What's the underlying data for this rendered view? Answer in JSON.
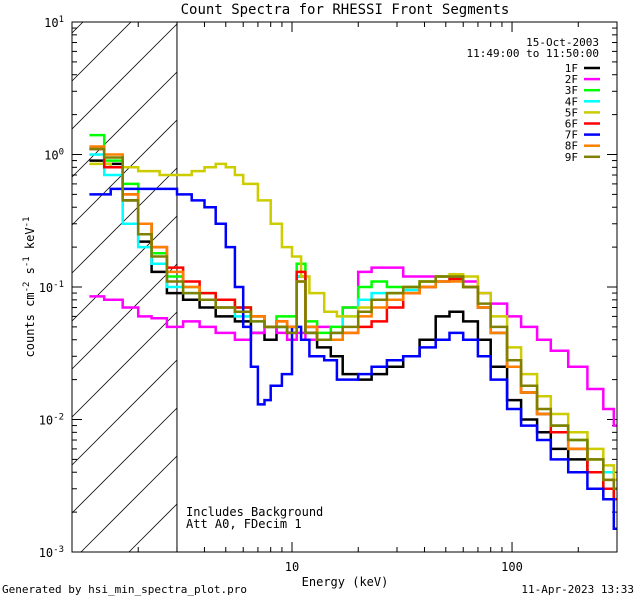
{
  "chart_data": {
    "type": "line",
    "title": "Count Spectra for RHESSI Front Segments",
    "date": "15-Oct-2003",
    "time_range": "11:49:00 to 11:50:00",
    "xlabel": "Energy (keV)",
    "ylabel_parts": [
      "counts cm",
      "-2",
      " s",
      "-1",
      " keV",
      "-1"
    ],
    "xscale": "log",
    "yscale": "log",
    "xlim": [
      1,
      300
    ],
    "ylim": [
      0.001,
      10
    ],
    "x_ticks": [
      {
        "value": 10,
        "label": "10"
      },
      {
        "value": 100,
        "label": "100"
      }
    ],
    "y_ticks": [
      {
        "value": 0.001,
        "base": "10",
        "exp": "-3"
      },
      {
        "value": 0.01,
        "base": "10",
        "exp": "-2"
      },
      {
        "value": 0.1,
        "base": "10",
        "exp": "-1"
      },
      {
        "value": 1,
        "base": "10",
        "exp": "0"
      },
      {
        "value": 10,
        "base": "10",
        "exp": "1"
      }
    ],
    "hatched_region_keV": [
      1,
      3
    ],
    "annotations": [
      "Includes Background",
      "Att A0, FDecim 1"
    ],
    "legend_position": "top-right",
    "series": [
      {
        "name": "1F",
        "color": "#000000",
        "x": [
          1.2,
          1.4,
          1.7,
          2.0,
          2.3,
          2.7,
          3.2,
          3.8,
          4.5,
          5.5,
          6.5,
          7.5,
          8.5,
          9.5,
          10.5,
          11.5,
          13,
          15,
          17,
          20,
          23,
          27,
          32,
          38,
          45,
          52,
          60,
          70,
          80,
          95,
          110,
          130,
          150,
          180,
          220,
          260,
          290
        ],
        "values": [
          0.9,
          0.85,
          0.45,
          0.22,
          0.13,
          0.09,
          0.08,
          0.07,
          0.06,
          0.055,
          0.045,
          0.04,
          0.05,
          0.045,
          0.12,
          0.045,
          0.035,
          0.03,
          0.022,
          0.02,
          0.022,
          0.025,
          0.03,
          0.04,
          0.06,
          0.065,
          0.055,
          0.04,
          0.025,
          0.014,
          0.01,
          0.008,
          0.006,
          0.005,
          0.004,
          0.003,
          0.0025
        ]
      },
      {
        "name": "2F",
        "color": "#ff00ff",
        "x": [
          1.2,
          1.4,
          1.7,
          2.0,
          2.3,
          2.7,
          3.2,
          3.8,
          4.5,
          5.5,
          6.5,
          7.5,
          8.5,
          9.5,
          10.5,
          11.5,
          13,
          15,
          17,
          20,
          23,
          27,
          32,
          38,
          45,
          52,
          60,
          70,
          80,
          95,
          110,
          130,
          150,
          180,
          220,
          260,
          290
        ],
        "values": [
          0.085,
          0.08,
          0.07,
          0.06,
          0.058,
          0.05,
          0.055,
          0.05,
          0.045,
          0.04,
          0.045,
          0.05,
          0.045,
          0.04,
          0.045,
          0.04,
          0.05,
          0.045,
          0.07,
          0.13,
          0.14,
          0.14,
          0.12,
          0.12,
          0.12,
          0.12,
          0.11,
          0.09,
          0.075,
          0.06,
          0.05,
          0.04,
          0.033,
          0.025,
          0.017,
          0.012,
          0.009
        ]
      },
      {
        "name": "3F",
        "color": "#00ff00",
        "x": [
          1.2,
          1.4,
          1.7,
          2.0,
          2.3,
          2.7,
          3.2,
          3.8,
          4.5,
          5.5,
          6.5,
          7.5,
          8.5,
          9.5,
          10.5,
          11.5,
          13,
          15,
          17,
          20,
          23,
          27,
          32,
          38,
          45,
          52,
          60,
          70,
          80,
          95,
          110,
          130,
          150,
          180,
          220,
          260,
          290
        ],
        "values": [
          1.4,
          0.9,
          0.6,
          0.3,
          0.18,
          0.12,
          0.1,
          0.09,
          0.08,
          0.07,
          0.06,
          0.05,
          0.06,
          0.06,
          0.15,
          0.055,
          0.045,
          0.05,
          0.07,
          0.1,
          0.11,
          0.1,
          0.1,
          0.11,
          0.12,
          0.12,
          0.1,
          0.07,
          0.045,
          0.025,
          0.016,
          0.011,
          0.009,
          0.007,
          0.005,
          0.004,
          0.003
        ]
      },
      {
        "name": "4F",
        "color": "#00ffff",
        "x": [
          1.2,
          1.4,
          1.7,
          2.0,
          2.3,
          2.7,
          3.2,
          3.8,
          4.5,
          5.5,
          6.5,
          7.5,
          8.5,
          9.5,
          10.5,
          11.5,
          13,
          15,
          17,
          20,
          23,
          27,
          32,
          38,
          45,
          52,
          60,
          70,
          80,
          95,
          110,
          130,
          150,
          180,
          220,
          260,
          290
        ],
        "values": [
          1.0,
          0.7,
          0.3,
          0.2,
          0.15,
          0.1,
          0.09,
          0.08,
          0.07,
          0.06,
          0.055,
          0.05,
          0.05,
          0.05,
          0.12,
          0.05,
          0.04,
          0.045,
          0.06,
          0.08,
          0.09,
          0.09,
          0.095,
          0.1,
          0.11,
          0.115,
          0.1,
          0.07,
          0.045,
          0.025,
          0.016,
          0.011,
          0.009,
          0.006,
          0.005,
          0.004,
          0.003
        ]
      },
      {
        "name": "5F",
        "color": "#cccc00",
        "x": [
          1.2,
          1.5,
          2.0,
          2.5,
          3.0,
          3.5,
          4.0,
          4.5,
          5.0,
          5.5,
          6.0,
          7.0,
          8.0,
          9.0,
          10,
          11,
          12,
          14,
          16,
          20,
          23,
          27,
          32,
          38,
          45,
          52,
          60,
          70,
          80,
          95,
          110,
          130,
          150,
          180,
          220,
          260,
          290
        ],
        "values": [
          0.85,
          0.8,
          0.75,
          0.7,
          0.7,
          0.75,
          0.8,
          0.85,
          0.8,
          0.7,
          0.6,
          0.45,
          0.3,
          0.2,
          0.17,
          0.12,
          0.09,
          0.065,
          0.06,
          0.07,
          0.08,
          0.09,
          0.1,
          0.11,
          0.12,
          0.125,
          0.12,
          0.09,
          0.06,
          0.035,
          0.022,
          0.015,
          0.011,
          0.008,
          0.006,
          0.0045,
          0.0035
        ]
      },
      {
        "name": "6F",
        "color": "#ff0000",
        "x": [
          1.2,
          1.4,
          1.7,
          2.0,
          2.3,
          2.7,
          3.2,
          3.8,
          4.5,
          5.5,
          6.5,
          7.5,
          8.5,
          9.5,
          10.5,
          11.5,
          13,
          15,
          17,
          20,
          23,
          27,
          32,
          38,
          45,
          52,
          60,
          70,
          80,
          95,
          110,
          130,
          150,
          180,
          220,
          260,
          290
        ],
        "values": [
          1.1,
          0.8,
          0.5,
          0.3,
          0.2,
          0.14,
          0.11,
          0.09,
          0.08,
          0.07,
          0.06,
          0.05,
          0.055,
          0.05,
          0.13,
          0.05,
          0.04,
          0.04,
          0.045,
          0.05,
          0.055,
          0.07,
          0.09,
          0.1,
          0.11,
          0.115,
          0.1,
          0.07,
          0.045,
          0.025,
          0.016,
          0.011,
          0.008,
          0.006,
          0.004,
          0.003,
          0.0025
        ]
      },
      {
        "name": "7F",
        "color": "#0000ff",
        "x": [
          1.2,
          1.5,
          2.0,
          2.5,
          3.0,
          3.5,
          4.0,
          4.5,
          5.0,
          5.5,
          6.0,
          6.5,
          7.0,
          7.5,
          8.0,
          9.0,
          10,
          11,
          12,
          14,
          16,
          20,
          23,
          27,
          32,
          38,
          45,
          52,
          60,
          70,
          80,
          95,
          110,
          130,
          150,
          180,
          220,
          260,
          290
        ],
        "values": [
          0.5,
          0.55,
          0.55,
          0.55,
          0.5,
          0.45,
          0.4,
          0.3,
          0.2,
          0.1,
          0.05,
          0.025,
          0.013,
          0.014,
          0.018,
          0.022,
          0.05,
          0.04,
          0.03,
          0.028,
          0.02,
          0.022,
          0.025,
          0.028,
          0.03,
          0.035,
          0.04,
          0.045,
          0.04,
          0.03,
          0.02,
          0.012,
          0.009,
          0.007,
          0.005,
          0.004,
          0.003,
          0.0025,
          0.0015
        ]
      },
      {
        "name": "8F",
        "color": "#ff8000",
        "x": [
          1.2,
          1.4,
          1.7,
          2.0,
          2.3,
          2.7,
          3.2,
          3.8,
          4.5,
          5.5,
          6.5,
          7.5,
          8.5,
          9.5,
          10.5,
          11.5,
          13,
          15,
          17,
          20,
          23,
          27,
          32,
          38,
          45,
          52,
          60,
          70,
          80,
          95,
          110,
          130,
          150,
          180,
          220,
          260,
          290
        ],
        "values": [
          1.15,
          1.0,
          0.5,
          0.3,
          0.2,
          0.13,
          0.1,
          0.08,
          0.07,
          0.065,
          0.06,
          0.05,
          0.055,
          0.05,
          0.11,
          0.05,
          0.04,
          0.04,
          0.045,
          0.06,
          0.07,
          0.08,
          0.09,
          0.1,
          0.11,
          0.11,
          0.1,
          0.07,
          0.045,
          0.025,
          0.016,
          0.011,
          0.009,
          0.006,
          0.005,
          0.0035,
          0.003
        ]
      },
      {
        "name": "9F",
        "color": "#808000",
        "x": [
          1.2,
          1.4,
          1.7,
          2.0,
          2.3,
          2.7,
          3.2,
          3.8,
          4.5,
          5.5,
          6.5,
          7.5,
          8.5,
          9.5,
          10.5,
          11.5,
          13,
          15,
          17,
          20,
          23,
          27,
          32,
          38,
          45,
          52,
          60,
          70,
          80,
          95,
          110,
          130,
          150,
          180,
          220,
          260,
          290
        ],
        "values": [
          1.1,
          0.95,
          0.45,
          0.25,
          0.17,
          0.11,
          0.09,
          0.08,
          0.07,
          0.065,
          0.055,
          0.05,
          0.05,
          0.045,
          0.11,
          0.045,
          0.04,
          0.045,
          0.05,
          0.065,
          0.08,
          0.09,
          0.1,
          0.11,
          0.12,
          0.12,
          0.1,
          0.075,
          0.05,
          0.028,
          0.018,
          0.012,
          0.009,
          0.007,
          0.005,
          0.0035,
          0.003
        ]
      }
    ]
  },
  "footer": {
    "generated_by": "Generated by hsi_min_spectra_plot.pro",
    "timestamp": "11-Apr-2023 13:33"
  }
}
